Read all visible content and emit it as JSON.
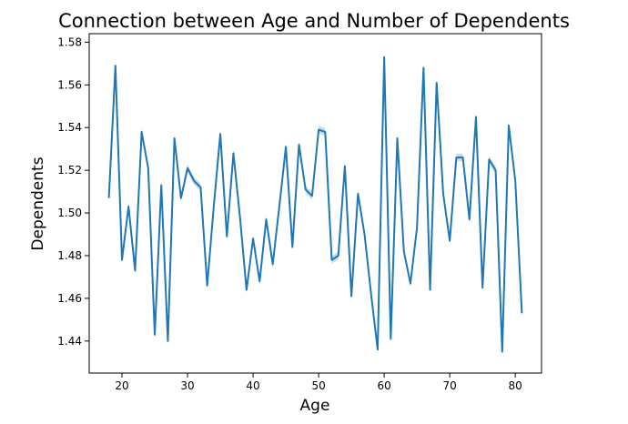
{
  "chart_data": {
    "type": "line",
    "title": "Connection between Age and Number of Dependents",
    "xlabel": "Age",
    "ylabel": "Dependents",
    "xlim": [
      15,
      84
    ],
    "ylim": [
      1.425,
      1.584
    ],
    "xticks": [
      20,
      30,
      40,
      50,
      60,
      70,
      80
    ],
    "yticks": [
      1.44,
      1.46,
      1.48,
      1.5,
      1.52,
      1.54,
      1.56,
      1.58
    ],
    "ytick_labels": [
      "1.44",
      "1.46",
      "1.48",
      "1.50",
      "1.52",
      "1.54",
      "1.56",
      "1.58"
    ],
    "grid": false,
    "colors": {
      "line": "#1f77b4",
      "band": "#1f77b4"
    },
    "series": [
      {
        "x": [
          18,
          19,
          20,
          21,
          22,
          23,
          24,
          25,
          26,
          27,
          28,
          29,
          30,
          31,
          32,
          33,
          34,
          35,
          36,
          37,
          38,
          39,
          40,
          41,
          42,
          43,
          44,
          45,
          46,
          47,
          48,
          49,
          50,
          51,
          52,
          53,
          54,
          55,
          56,
          57,
          58,
          59,
          60,
          61,
          62,
          63,
          64,
          65,
          66,
          67,
          68,
          69,
          70,
          71,
          72,
          73,
          74,
          75,
          76,
          77,
          78,
          79,
          80,
          81
        ],
        "y": [
          1.507,
          1.569,
          1.478,
          1.503,
          1.473,
          1.538,
          1.521,
          1.443,
          1.513,
          1.44,
          1.535,
          1.507,
          1.521,
          1.515,
          1.512,
          1.466,
          1.503,
          1.537,
          1.489,
          1.528,
          1.498,
          1.464,
          1.488,
          1.468,
          1.497,
          1.476,
          1.503,
          1.531,
          1.484,
          1.532,
          1.511,
          1.508,
          1.539,
          1.538,
          1.478,
          1.48,
          1.522,
          1.461,
          1.509,
          1.49,
          1.462,
          1.436,
          1.573,
          1.441,
          1.535,
          1.482,
          1.467,
          1.493,
          1.568,
          1.464,
          1.561,
          1.509,
          1.487,
          1.526,
          1.526,
          1.497,
          1.545,
          1.465,
          1.525,
          1.52,
          1.435,
          1.541,
          1.515,
          1.453
        ]
      }
    ]
  }
}
